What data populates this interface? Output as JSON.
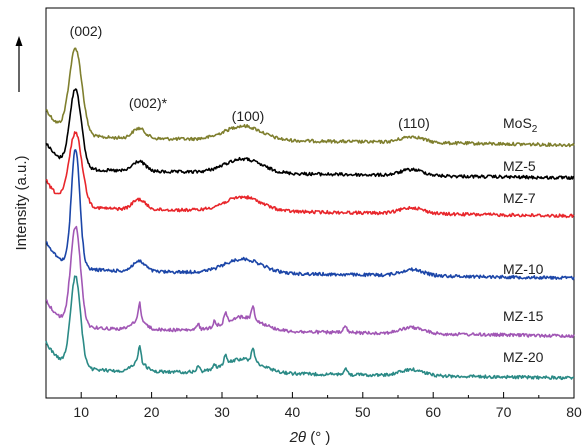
{
  "chart_data": {
    "type": "line",
    "xlabel_italic": "2θ",
    "xlabel_rest": " (° )",
    "ylabel": "Intensity (a.u.)",
    "xlim": [
      5,
      80
    ],
    "xticks": [
      10,
      20,
      30,
      40,
      50,
      60,
      70,
      80
    ],
    "grid": false,
    "annotations": [
      {
        "text": "(002)",
        "x": 9.2
      },
      {
        "text": "(002)*",
        "x": 21.0
      },
      {
        "text": "(100)",
        "x": 33.5
      },
      {
        "text": "(110)",
        "x": 57.0
      }
    ],
    "series": [
      {
        "name": "MoS",
        "name_sub": "2",
        "color": "#7f7f2e",
        "baseline": 145,
        "peak002": 85,
        "peak002w": 0.9,
        "peak_half": 0,
        "minor": 0,
        "x": [
          5,
          8,
          9.2,
          10.5,
          15,
          18.2,
          25,
          33,
          45,
          57,
          70,
          80
        ],
        "y": [
          0.99,
          0.78,
          1.0,
          0.7,
          0.6,
          0.59,
          0.51,
          0.53,
          0.47,
          0.45,
          0.43,
          0.42
        ]
      },
      {
        "name": "MZ-5",
        "color": "#000000",
        "baseline": 178,
        "peak002": 78,
        "peak002w": 0.8,
        "peak_half": 0,
        "minor": 0,
        "x": [
          5,
          8,
          9.2,
          10.5,
          15,
          18.2,
          25,
          33,
          45,
          57,
          70,
          80
        ],
        "y": [
          0.78,
          0.65,
          0.8,
          0.56,
          0.5,
          0.49,
          0.44,
          0.46,
          0.42,
          0.41,
          0.4,
          0.4
        ]
      },
      {
        "name": "MZ-7",
        "color": "#e8262b",
        "baseline": 216,
        "peak002": 72,
        "peak002w": 0.9,
        "peak_half": 0,
        "minor": 0,
        "x": [
          5,
          8,
          9.2,
          10.5,
          15,
          18.2,
          25,
          33,
          45,
          57,
          70,
          80
        ],
        "y": [
          0.64,
          0.52,
          0.65,
          0.44,
          0.38,
          0.37,
          0.34,
          0.35,
          0.32,
          0.31,
          0.3,
          0.29
        ]
      },
      {
        "name": "MZ-10",
        "color": "#1c46a8",
        "baseline": 278,
        "peak002": 118,
        "peak002w": 0.6,
        "peak_half": 0,
        "minor": 0,
        "x": [
          5,
          8,
          9.2,
          10.5,
          15,
          18.2,
          25,
          33,
          45,
          57,
          70,
          80
        ],
        "y": [
          0.56,
          0.4,
          0.78,
          0.3,
          0.23,
          0.22,
          0.19,
          0.2,
          0.18,
          0.17,
          0.16,
          0.16
        ]
      },
      {
        "name": "MZ-15",
        "color": "#a157b5",
        "baseline": 336,
        "peak002": 98,
        "peak002w": 0.7,
        "peak_half": 0,
        "minor": 1,
        "x": [
          5,
          8,
          9.2,
          10.5,
          15,
          18.2,
          25,
          33,
          45,
          57,
          70,
          80
        ],
        "y": [
          0.36,
          0.26,
          0.45,
          0.16,
          0.12,
          0.15,
          0.1,
          0.11,
          0.09,
          0.09,
          0.08,
          0.08
        ]
      },
      {
        "name": "MZ-20",
        "color": "#2b8a86",
        "baseline": 378,
        "peak002": 90,
        "peak002w": 0.7,
        "peak_half": 0,
        "minor": 1,
        "x": [
          5,
          8,
          9.2,
          10.5,
          15,
          18.2,
          25,
          33,
          45,
          57,
          70,
          80
        ],
        "y": [
          0.24,
          0.17,
          0.34,
          0.08,
          0.05,
          0.06,
          0.03,
          0.04,
          0.02,
          0.02,
          0.01,
          0.01
        ]
      }
    ]
  }
}
